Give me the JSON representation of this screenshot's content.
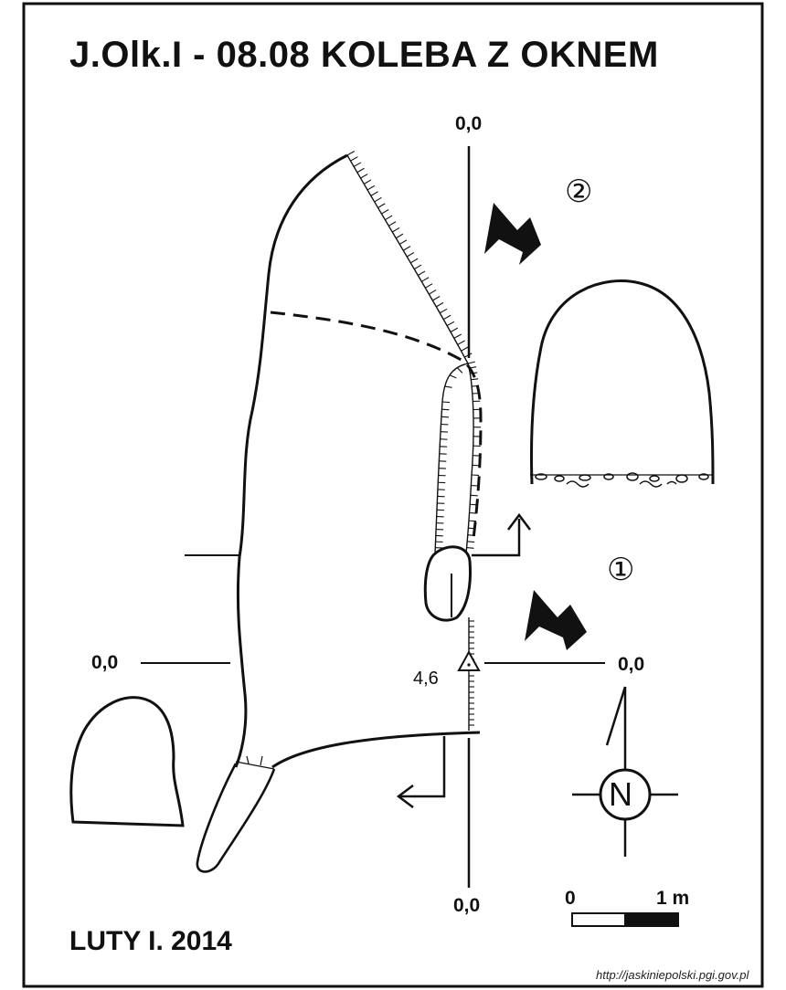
{
  "title": "J.Olk.I - 08.08  KOLEBA Z OKNEM",
  "datum_labels": {
    "top": "0,0",
    "left": "0,0",
    "right": "0,0",
    "bottom": "0,0"
  },
  "height_mark": "4,6",
  "section_markers": {
    "one": "①",
    "two": "②"
  },
  "north_label": "N",
  "scale_bar": {
    "start": "0",
    "end": "1 m"
  },
  "author_date": "LUTY I. 2014",
  "source": "http://jaskiniepolski.pgi.gov.pl",
  "colors": {
    "ink": "#111111",
    "paper": "#ffffff"
  }
}
